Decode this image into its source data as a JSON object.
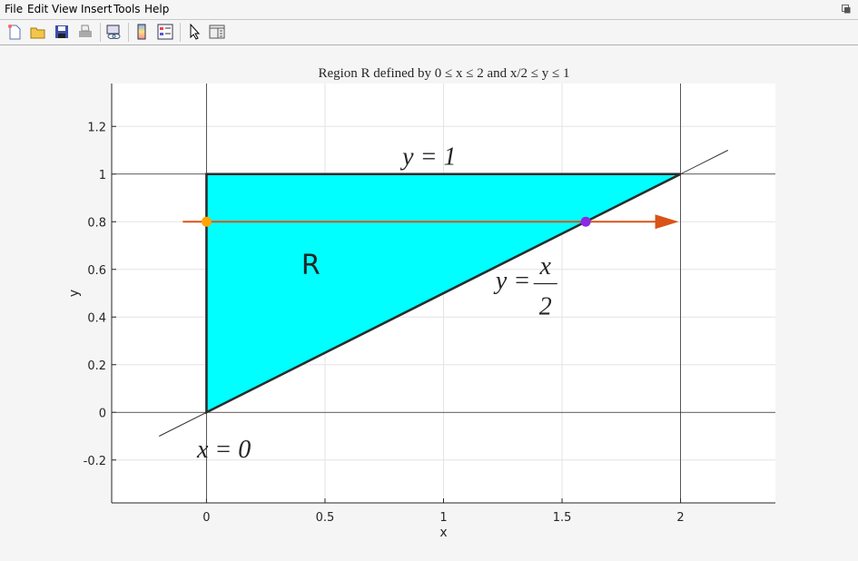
{
  "menu": {
    "items": [
      "File",
      "Edit",
      "View",
      "Insert",
      "Tools",
      "Help"
    ]
  },
  "toolbar": {
    "icons": [
      "new-file-icon",
      "open-folder-icon",
      "save-icon",
      "print-icon",
      "link-icon",
      "colorbar-icon",
      "legend-icon",
      "pointer-icon",
      "property-editor-icon"
    ]
  },
  "chart_data": {
    "type": "line",
    "title": "Region R defined by 0 ≤ x ≤ 2 and x/2 ≤ y ≤ 1",
    "xlabel": "x",
    "ylabel": "y",
    "xlim": [
      -0.4,
      2.4
    ],
    "ylim": [
      -0.38,
      1.38
    ],
    "xticks": [
      0,
      0.5,
      1,
      1.5,
      2
    ],
    "xtick_labels": [
      "0",
      "0.5",
      "1",
      "1.5",
      "2"
    ],
    "yticks": [
      -0.2,
      0,
      0.2,
      0.4,
      0.6,
      0.8,
      1,
      1.2
    ],
    "ytick_labels": [
      "-0.2",
      "0",
      "0.2",
      "0.4",
      "0.6",
      "0.8",
      "1",
      "1.2"
    ],
    "grid": true,
    "region": {
      "label": "R",
      "vertices": [
        [
          0,
          0
        ],
        [
          0,
          1
        ],
        [
          2,
          1
        ]
      ],
      "fill": "#00ffff"
    },
    "reference_lines": {
      "x": [
        0,
        2
      ],
      "y": [
        0,
        1
      ]
    },
    "line_y_eq_x_over_2": {
      "x": [
        -0.2,
        2.2
      ],
      "y": [
        -0.1,
        1.1
      ]
    },
    "arrow": {
      "from": [
        -0.1,
        0.8
      ],
      "to": [
        2.0,
        0.8
      ],
      "color": "#d95319"
    },
    "points": [
      {
        "x": 0,
        "y": 0.8,
        "color": "#ffa500"
      },
      {
        "x": 1.6,
        "y": 0.8,
        "color": "#8a2be2"
      }
    ],
    "annotations": {
      "top": "y = 1",
      "diag_lhs": "y =",
      "diag_num": "x",
      "diag_den": "2",
      "left": "x = 0"
    }
  }
}
